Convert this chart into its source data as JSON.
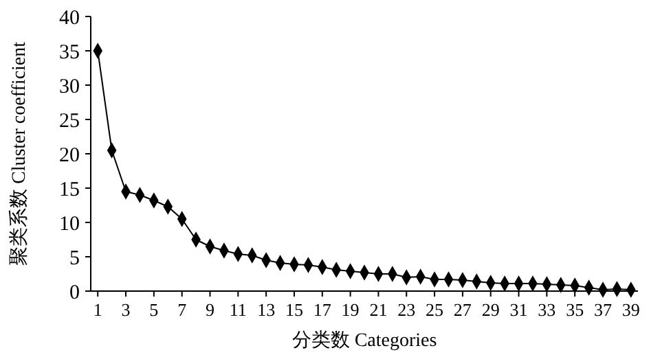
{
  "chart_data": {
    "type": "line",
    "xlabel": "分类数 Categories",
    "ylabel": "聚类系数 Cluster coefficient",
    "x": [
      1,
      2,
      3,
      4,
      5,
      6,
      7,
      8,
      9,
      10,
      11,
      12,
      13,
      14,
      15,
      16,
      17,
      18,
      19,
      20,
      21,
      22,
      23,
      24,
      25,
      26,
      27,
      28,
      29,
      30,
      31,
      32,
      33,
      34,
      35,
      36,
      37,
      38,
      39
    ],
    "xlim": [
      0.5,
      39.5
    ],
    "xticks": [
      1,
      3,
      5,
      7,
      9,
      11,
      13,
      15,
      17,
      19,
      21,
      23,
      25,
      27,
      29,
      31,
      33,
      35,
      37,
      39
    ],
    "series": [
      {
        "color": "#000000",
        "values": [
          35,
          20.5,
          14.5,
          14,
          13.2,
          12.3,
          10.5,
          7.5,
          6.5,
          5.9,
          5.4,
          5.2,
          4.5,
          4.1,
          3.9,
          3.8,
          3.5,
          3.1,
          2.9,
          2.7,
          2.5,
          2.5,
          2.0,
          2.1,
          1.7,
          1.7,
          1.6,
          1.4,
          1.2,
          1.1,
          1.1,
          1.1,
          1.0,
          0.9,
          0.8,
          0.5,
          0.2,
          0.3,
          0.2
        ]
      }
    ],
    "ylim": [
      0,
      40
    ],
    "yticks": [
      0,
      5,
      10,
      15,
      20,
      25,
      30,
      35,
      40
    ],
    "marker": "diamond",
    "line_style": "solid",
    "grid": false
  }
}
